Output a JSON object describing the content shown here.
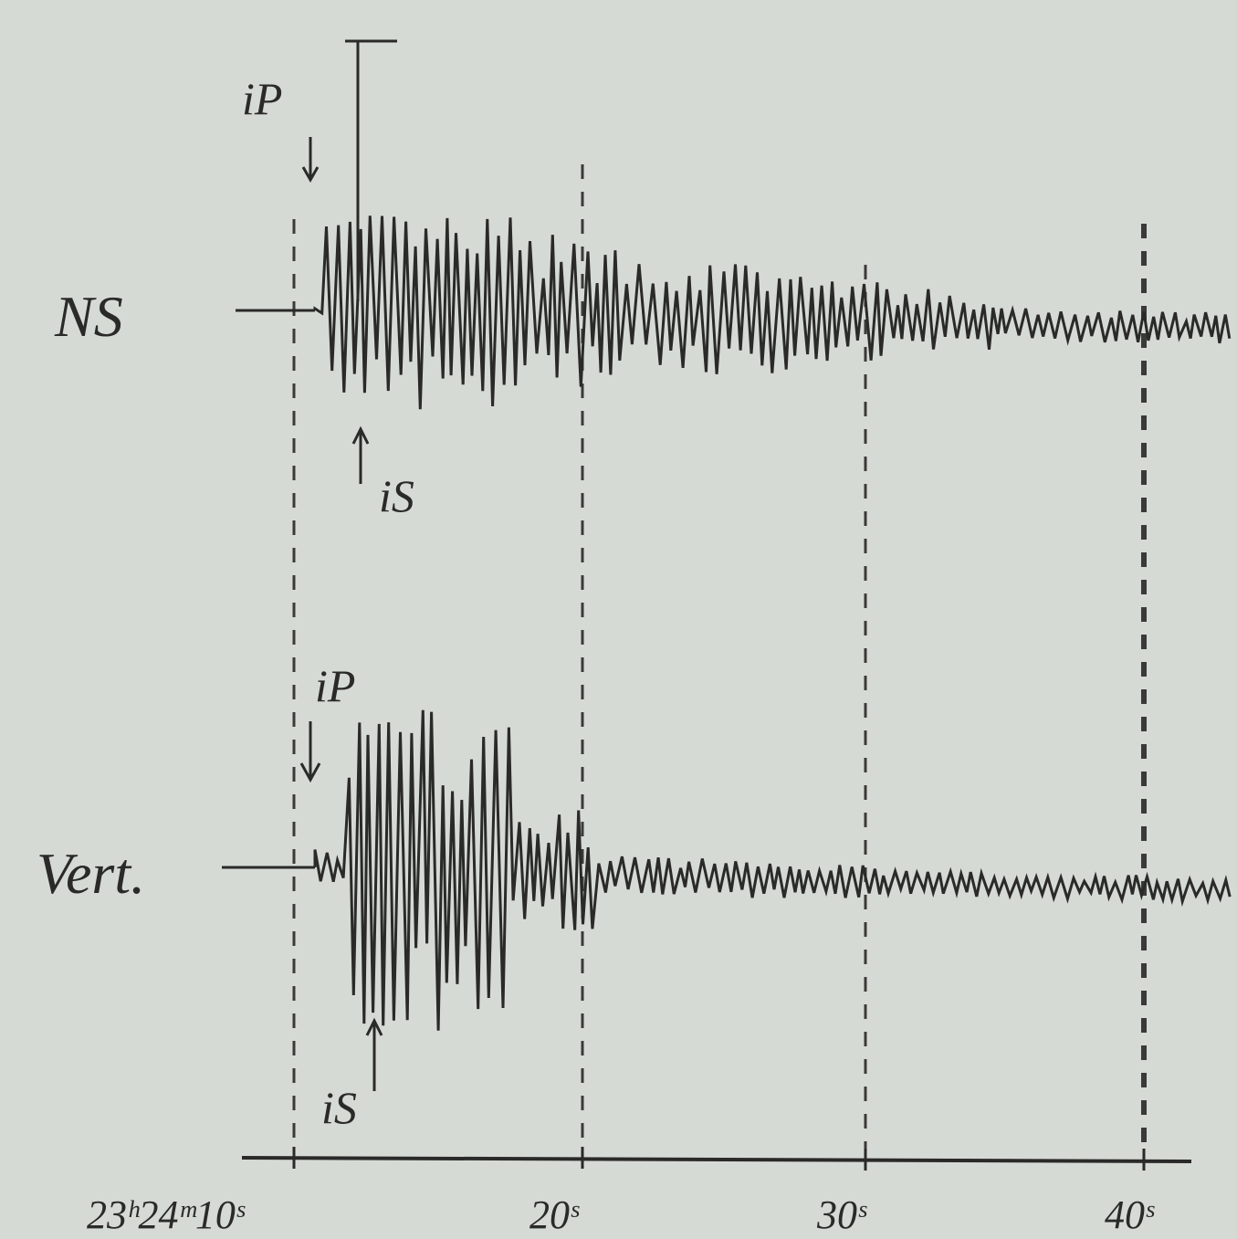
{
  "traces": [
    {
      "name": "NS",
      "markers": [
        "iP",
        "iS"
      ]
    },
    {
      "name": "Vert.",
      "markers": [
        "iP",
        "iS"
      ]
    }
  ],
  "time_axis": {
    "labels": [
      "23ʰ24ᵐ10ˢ",
      "20ˢ",
      "30ˢ",
      "40ˢ"
    ]
  }
}
